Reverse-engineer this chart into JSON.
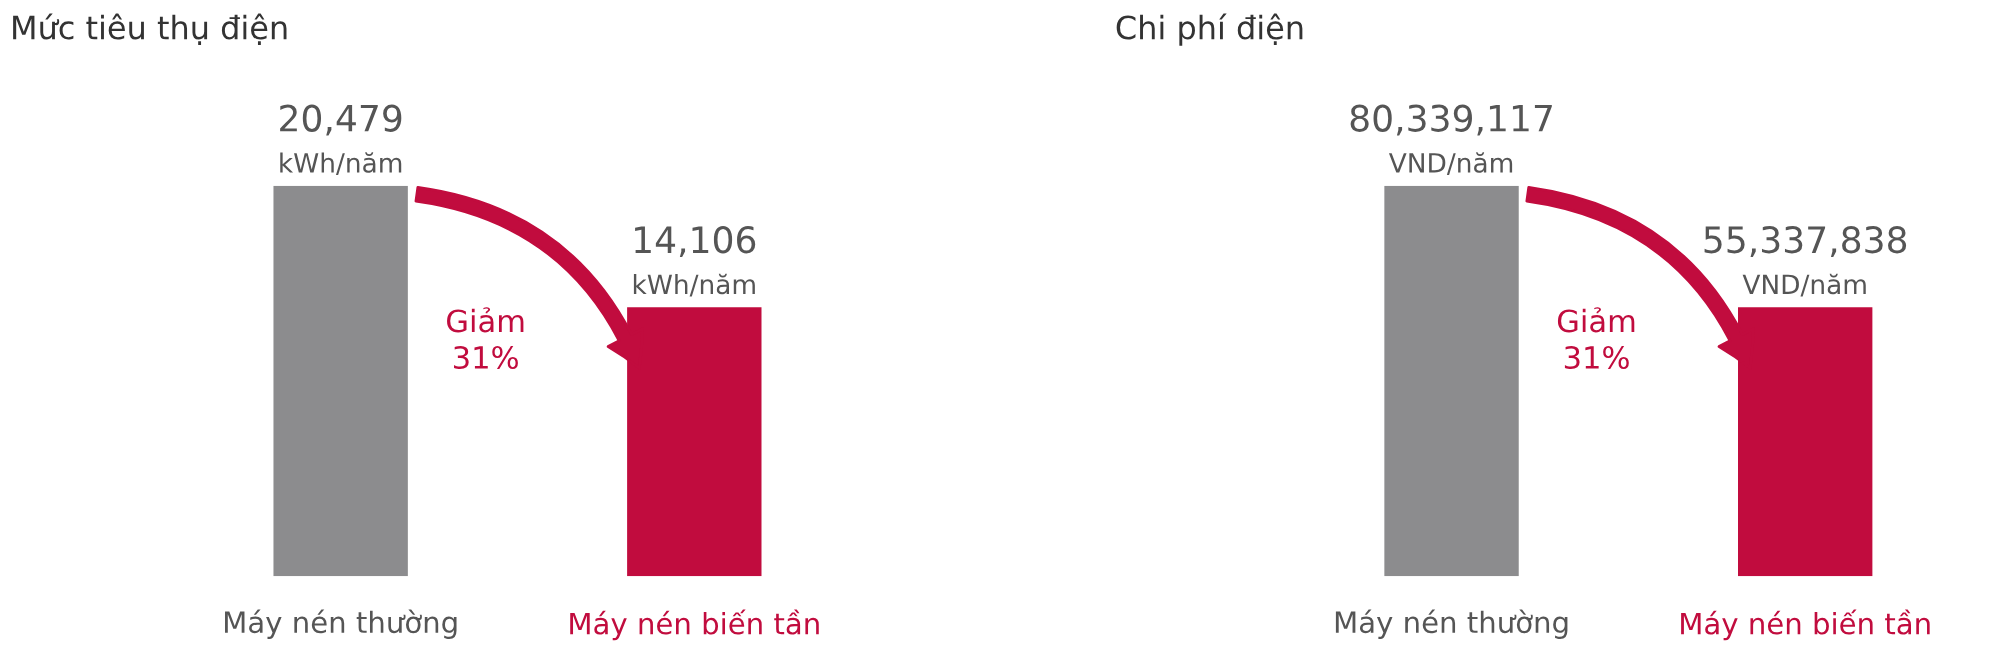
{
  "chart_data": [
    {
      "type": "bar",
      "title": "Mức tiêu thụ điện",
      "categories": [
        "Máy nén thường",
        "Máy nén biến tần"
      ],
      "values": [
        20479,
        14106
      ],
      "colors": [
        "#8c8c8e",
        "#c10c3e"
      ],
      "value_labels": [
        "20,479\nkWh/năm",
        "14,106\nkWh/năm"
      ],
      "annotations": [
        "Giảm\n31%"
      ]
    },
    {
      "type": "bar",
      "title": "Chi phí điện",
      "categories": [
        "Máy nén thường",
        "Máy nén biến tần"
      ],
      "values": [
        80339117,
        55337838
      ],
      "colors": [
        "#8c8c8e",
        "#c10c3e"
      ],
      "value_labels": [
        "80,339,117\nVND/năm",
        "55,337,838\nVND/năm"
      ],
      "annotations": [
        "Giảm\n31%"
      ]
    }
  ]
}
